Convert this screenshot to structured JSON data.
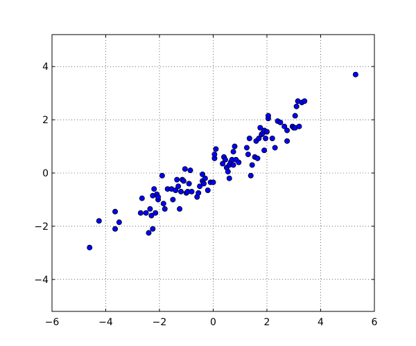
{
  "chart_data": {
    "type": "scatter",
    "title": "",
    "xlabel": "",
    "ylabel": "",
    "xlim": [
      -6,
      6
    ],
    "ylim": [
      -5.2,
      5.2
    ],
    "xticks": [
      -6,
      -4,
      -2,
      0,
      2,
      4,
      6
    ],
    "yticks": [
      -4,
      -2,
      0,
      2,
      4
    ],
    "xtick_labels": [
      "−6",
      "−4",
      "−2",
      "0",
      "2",
      "4",
      "6"
    ],
    "ytick_labels": [
      "−4",
      "−2",
      "0",
      "2",
      "4"
    ],
    "grid": true,
    "marker_color": "#0000ff",
    "series": [
      {
        "x": [
          -4.6,
          -4.25,
          -3.65,
          -3.65,
          -3.5,
          -2.7,
          -2.65,
          -2.5,
          -2.4,
          -2.35,
          -2.3,
          -2.25,
          -2.25,
          -2.2,
          -2.15,
          -2.1,
          -2.05,
          -2.05,
          -1.9,
          -1.8,
          -1.85,
          -1.7,
          -1.55,
          -1.5,
          -1.4,
          -1.35,
          -1.3,
          -1.25,
          -1.2,
          -1.15,
          -1.1,
          -1.05,
          -1.0,
          -0.95,
          -0.9,
          -0.85,
          -0.8,
          -0.6,
          -0.55,
          -0.5,
          -0.4,
          -0.4,
          -0.35,
          -0.3,
          -0.2,
          -0.1,
          0.0,
          0.05,
          0.05,
          0.1,
          0.35,
          0.4,
          0.45,
          0.5,
          0.55,
          0.6,
          0.6,
          0.65,
          0.7,
          0.75,
          0.75,
          0.8,
          0.85,
          0.95,
          1.25,
          1.3,
          1.35,
          1.4,
          1.45,
          1.55,
          1.6,
          1.65,
          1.7,
          1.75,
          1.8,
          1.85,
          1.9,
          1.9,
          1.95,
          2.0,
          2.05,
          2.05,
          2.2,
          2.3,
          2.4,
          2.5,
          2.65,
          2.75,
          2.75,
          2.95,
          3.0,
          3.05,
          3.05,
          3.1,
          3.15,
          3.2,
          3.3,
          3.4,
          5.3
        ],
        "y": [
          -2.8,
          -1.8,
          -1.45,
          -2.1,
          -1.85,
          -1.5,
          -0.95,
          -1.5,
          -2.25,
          -1.35,
          -1.6,
          -2.1,
          -0.85,
          -0.6,
          -1.5,
          -0.8,
          -1.0,
          -0.9,
          -0.1,
          -1.35,
          -1.15,
          -0.6,
          -0.6,
          -1.0,
          -0.65,
          -0.25,
          -0.5,
          -1.35,
          -0.7,
          -0.25,
          -0.3,
          0.15,
          -0.75,
          -0.7,
          -0.4,
          0.1,
          -0.7,
          -0.9,
          -0.75,
          -0.5,
          -0.05,
          -0.3,
          -0.4,
          -0.2,
          -0.65,
          -0.35,
          -0.35,
          0.55,
          0.7,
          0.9,
          0.35,
          0.6,
          0.5,
          0.2,
          0.05,
          0.3,
          -0.2,
          0.4,
          0.5,
          0.8,
          0.3,
          1.0,
          0.5,
          0.4,
          0.95,
          0.7,
          1.3,
          -0.1,
          0.3,
          0.6,
          1.2,
          0.55,
          1.3,
          1.7,
          1.45,
          1.5,
          1.6,
          0.85,
          1.3,
          1.55,
          2.05,
          2.15,
          1.3,
          0.95,
          1.95,
          1.9,
          1.75,
          1.6,
          1.2,
          1.75,
          1.7,
          2.15,
          1.7,
          2.5,
          2.7,
          1.75,
          2.65,
          2.7,
          3.7
        ]
      }
    ]
  }
}
